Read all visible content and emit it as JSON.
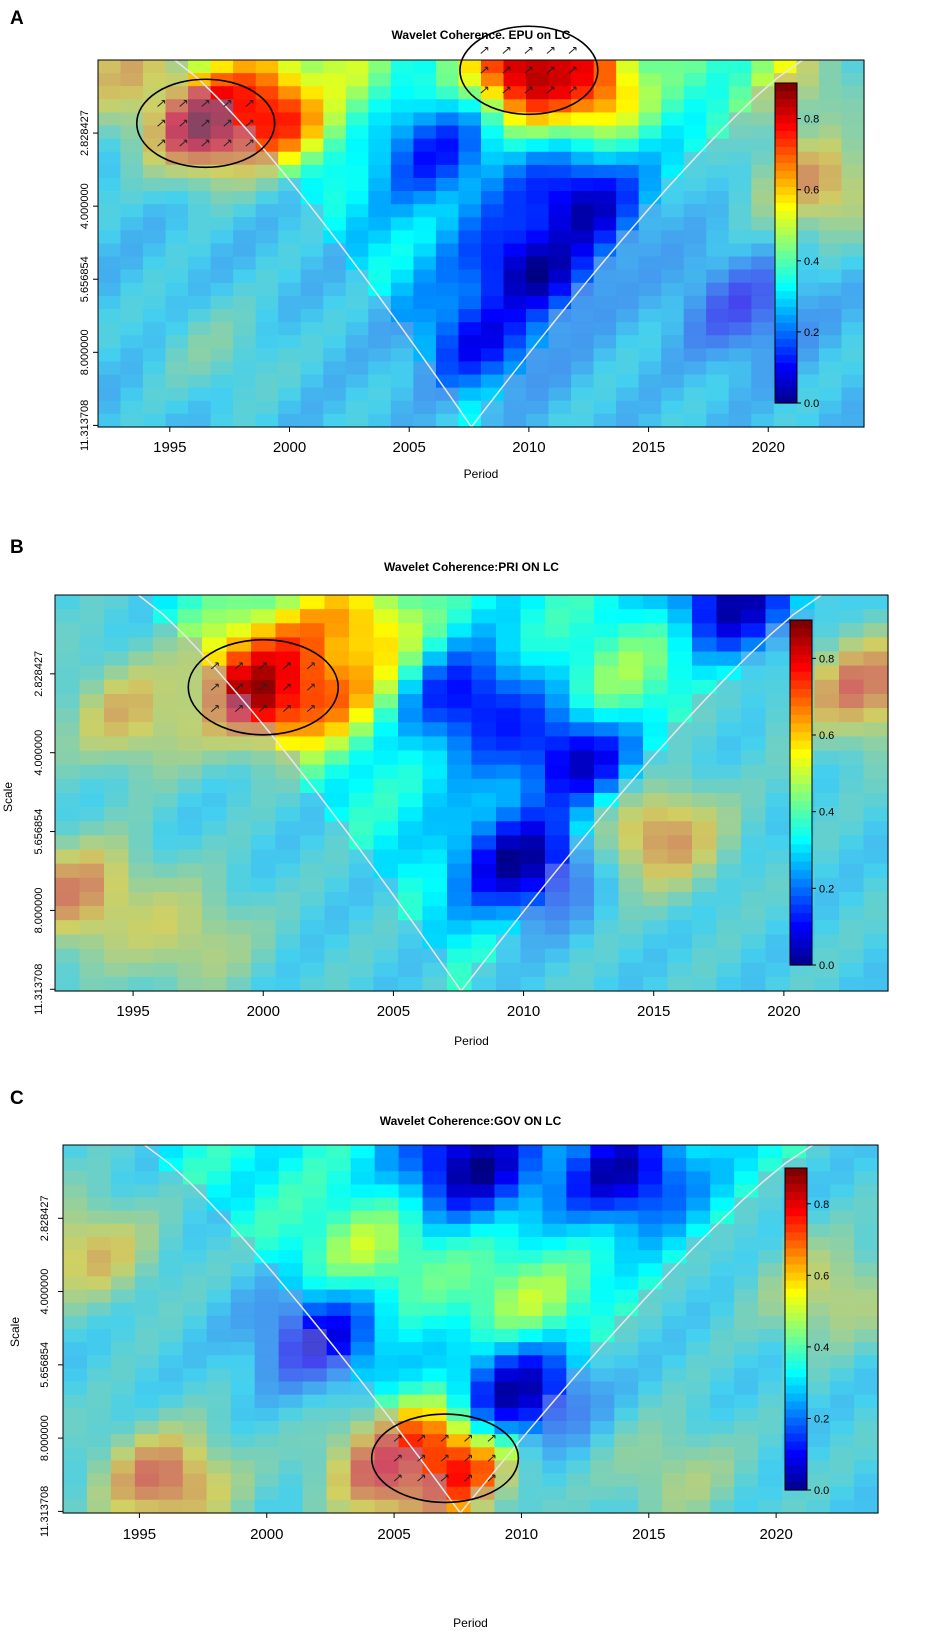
{
  "chart_data": [
    {
      "type": "heatmap",
      "panel": "A",
      "title": "Wavelet Coherence. EPU on LC",
      "xlabel": "Period",
      "ylabel": "",
      "x_ticks": [
        "1995",
        "2000",
        "2005",
        "2010",
        "2015",
        "2020"
      ],
      "y_ticks": [
        "2.828427",
        "4.000000",
        "5.656854",
        "8.000000",
        "11.313708"
      ],
      "colorbar_ticks": [
        "0.0",
        "0.2",
        "0.4",
        "0.6",
        "0.8"
      ],
      "colorbar_range": [
        0,
        0.9
      ],
      "xlim": [
        1992,
        2024
      ],
      "cone_of_influence": true,
      "significance_contours": true,
      "phase_arrows": true,
      "blobs": [
        {
          "x": 1996.5,
          "scale": 2.7,
          "value": 0.92
        },
        {
          "x": 1999.5,
          "scale": 2.5,
          "value": 0.85
        },
        {
          "x": 2010,
          "scale": 2.1,
          "value": 0.92
        },
        {
          "x": 2012.5,
          "scale": 2.2,
          "value": 0.8
        },
        {
          "x": 2002.5,
          "scale": 2.2,
          "value": 0.5
        },
        {
          "x": 1993,
          "scale": 2.1,
          "value": 0.6
        },
        {
          "x": 2022,
          "scale": 3.6,
          "value": 0.65
        },
        {
          "x": 2021,
          "scale": 2.2,
          "value": 0.55
        },
        {
          "x": 2010,
          "scale": 5.4,
          "value": 0.02
        },
        {
          "x": 2012,
          "scale": 4.0,
          "value": 0.05
        },
        {
          "x": 2008,
          "scale": 7.5,
          "value": 0.12
        },
        {
          "x": 2006,
          "scale": 3.1,
          "value": 0.15
        },
        {
          "x": 2017,
          "scale": 2.1,
          "value": 0.4
        },
        {
          "x": 1997,
          "scale": 8.0,
          "value": 0.42
        },
        {
          "x": 2019,
          "scale": 6.5,
          "value": 0.15
        }
      ],
      "base_value": 0.32
    },
    {
      "type": "heatmap",
      "panel": "B",
      "title": "Wavelet Coherence:PRI ON LC",
      "xlabel": "Period",
      "ylabel": "Scale",
      "x_ticks": [
        "1995",
        "2000",
        "2005",
        "2010",
        "2015",
        "2020"
      ],
      "y_ticks": [
        "2.828427",
        "4.000000",
        "5.656854",
        "8.000000",
        "11.313708"
      ],
      "colorbar_ticks": [
        "0.0",
        "0.2",
        "0.4",
        "0.6",
        "0.8"
      ],
      "colorbar_range": [
        0,
        0.9
      ],
      "xlim": [
        1992,
        2024
      ],
      "cone_of_influence": true,
      "significance_contours": true,
      "phase_arrows": true,
      "blobs": [
        {
          "x": 2000,
          "scale": 3.0,
          "value": 0.92
        },
        {
          "x": 2002,
          "scale": 2.8,
          "value": 0.82
        },
        {
          "x": 2003.5,
          "scale": 2.4,
          "value": 0.65
        },
        {
          "x": 1995,
          "scale": 3.4,
          "value": 0.6
        },
        {
          "x": 1993,
          "scale": 7.5,
          "value": 0.68
        },
        {
          "x": 2015,
          "scale": 5.7,
          "value": 0.7
        },
        {
          "x": 2023,
          "scale": 3.0,
          "value": 0.7
        },
        {
          "x": 2010,
          "scale": 6.5,
          "value": 0.03
        },
        {
          "x": 2012,
          "scale": 4.0,
          "value": 0.05
        },
        {
          "x": 2008,
          "scale": 3.2,
          "value": 0.1
        },
        {
          "x": 2018,
          "scale": 2.1,
          "value": 0.05
        },
        {
          "x": 2014,
          "scale": 2.8,
          "value": 0.45
        },
        {
          "x": 1997,
          "scale": 9.0,
          "value": 0.55
        }
      ],
      "base_value": 0.35
    },
    {
      "type": "heatmap",
      "panel": "C",
      "title": "Wavelet Coherence:GOV ON LC",
      "xlabel": "Period",
      "ylabel": "Scale",
      "x_ticks": [
        "1995",
        "2000",
        "2005",
        "2010",
        "2015",
        "2020"
      ],
      "y_ticks": [
        "2.828427",
        "4.000000",
        "5.656854",
        "8.000000",
        "11.313708"
      ],
      "colorbar_ticks": [
        "0.0",
        "0.2",
        "0.4",
        "0.6",
        "0.8"
      ],
      "colorbar_range": [
        0,
        0.9
      ],
      "xlim": [
        1992,
        2024
      ],
      "cone_of_influence": true,
      "significance_contours": true,
      "phase_arrows": true,
      "blobs": [
        {
          "x": 2007,
          "scale": 8.8,
          "value": 0.9
        },
        {
          "x": 2005,
          "scale": 9.3,
          "value": 0.75
        },
        {
          "x": 1996,
          "scale": 9.8,
          "value": 0.72
        },
        {
          "x": 2004,
          "scale": 3.3,
          "value": 0.5
        },
        {
          "x": 2010,
          "scale": 4.2,
          "value": 0.5
        },
        {
          "x": 2008,
          "scale": 2.2,
          "value": 0.02
        },
        {
          "x": 2014,
          "scale": 2.3,
          "value": 0.05
        },
        {
          "x": 2010,
          "scale": 6.5,
          "value": 0.05
        },
        {
          "x": 2002,
          "scale": 5.0,
          "value": 0.1
        },
        {
          "x": 1994,
          "scale": 5.0,
          "value": 0.35
        },
        {
          "x": 1993,
          "scale": 3.3,
          "value": 0.6
        },
        {
          "x": 2022,
          "scale": 4.0,
          "value": 0.55
        },
        {
          "x": 2016,
          "scale": 9.5,
          "value": 0.5
        }
      ],
      "base_value": 0.35
    }
  ]
}
